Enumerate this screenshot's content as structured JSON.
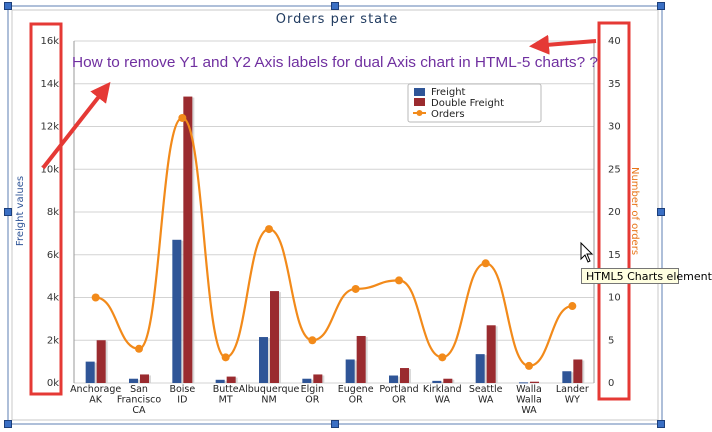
{
  "chart_data": {
    "type": "bar",
    "title": "Orders per state",
    "categories": [
      [
        "Anchorage",
        "AK"
      ],
      [
        "San",
        "Francisco",
        "CA"
      ],
      [
        "Boise",
        "ID"
      ],
      [
        "Butte",
        "MT"
      ],
      [
        "Albuquerque",
        "NM"
      ],
      [
        "Elgin",
        "OR"
      ],
      [
        "Eugene",
        "OR"
      ],
      [
        "Portland",
        "OR"
      ],
      [
        "Kirkland",
        "WA"
      ],
      [
        "Seattle",
        "WA"
      ],
      [
        "Walla",
        "Walla",
        "WA"
      ],
      [
        "Lander",
        "WY"
      ]
    ],
    "series": [
      {
        "name": "Freight",
        "axis": "y1",
        "color": "#2f5597",
        "values": [
          1000,
          200,
          6700,
          150,
          2150,
          200,
          1100,
          350,
          100,
          1350,
          30,
          550
        ]
      },
      {
        "name": "Double Freight",
        "axis": "y1",
        "color": "#9a2b2f",
        "values": [
          2000,
          400,
          13400,
          300,
          4300,
          400,
          2200,
          700,
          200,
          2700,
          60,
          1100
        ]
      },
      {
        "name": "Orders",
        "axis": "y2",
        "type": "line",
        "color": "#f28a1a",
        "values": [
          10,
          4,
          31,
          3,
          18,
          5,
          11,
          12,
          3,
          14,
          2,
          9
        ]
      }
    ],
    "y1": {
      "label": "Freight values",
      "min": 0,
      "max": 16000,
      "ticks": [
        "0k",
        "2k",
        "4k",
        "6k",
        "8k",
        "10k",
        "12k",
        "14k",
        "16k"
      ]
    },
    "y2": {
      "label": "Number of orders",
      "min": 0,
      "max": 40,
      "ticks": [
        "0",
        "5",
        "10",
        "15",
        "20",
        "25",
        "30",
        "35",
        "40"
      ]
    },
    "grid": true,
    "legend": "top-right"
  },
  "annotation": {
    "text": "How to remove Y1 and Y2 Axis labels for dual Axis chart in HTML-5 charts? ?",
    "color": "#7030a0",
    "highlight_color": "#e53935"
  },
  "tooltip": "HTML5 Charts element"
}
